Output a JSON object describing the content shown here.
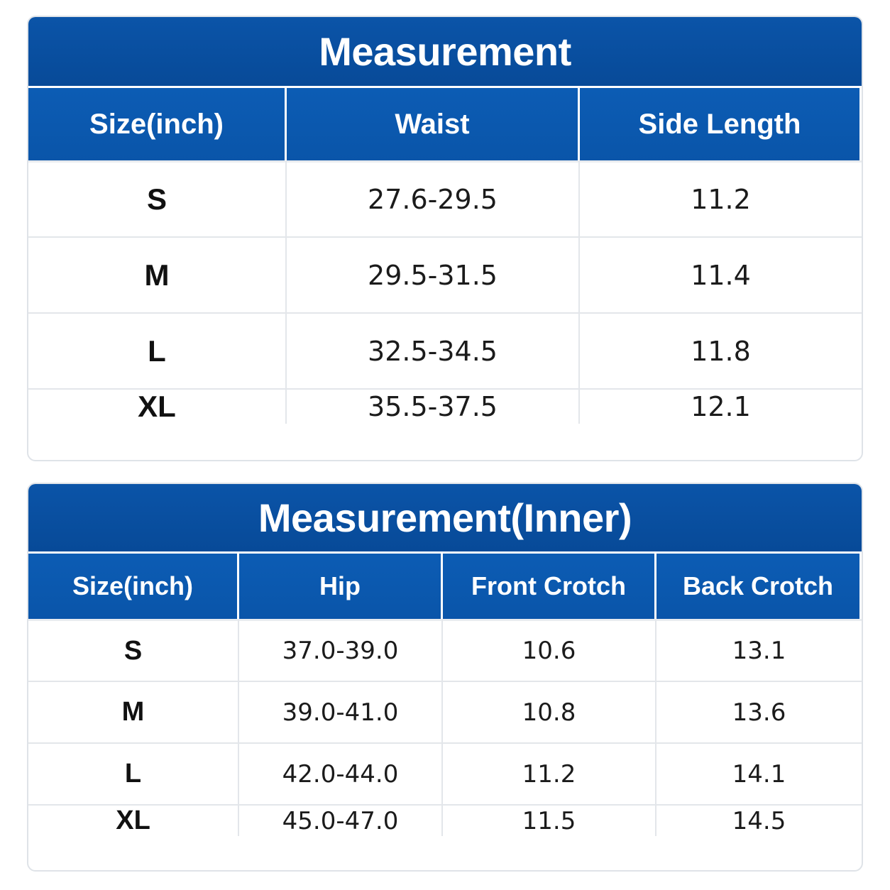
{
  "table1": {
    "title": "Measurement",
    "headers": [
      "Size(inch)",
      "Waist",
      "Side Length"
    ],
    "rows": [
      [
        "S",
        "27.6-29.5",
        "11.2"
      ],
      [
        "M",
        "29.5-31.5",
        "11.4"
      ],
      [
        "L",
        "32.5-34.5",
        "11.8"
      ],
      [
        "XL",
        "35.5-37.5",
        "12.1"
      ]
    ]
  },
  "table2": {
    "title": "Measurement(Inner)",
    "headers": [
      "Size(inch)",
      "Hip",
      "Front Crotch",
      "Back Crotch"
    ],
    "rows": [
      [
        "S",
        "37.0-39.0",
        "10.6",
        "13.1"
      ],
      [
        "M",
        "39.0-41.0",
        "10.8",
        "13.6"
      ],
      [
        "L",
        "42.0-44.0",
        "11.2",
        "14.1"
      ],
      [
        "XL",
        "45.0-47.0",
        "11.5",
        "14.5"
      ]
    ]
  },
  "colors": {
    "header_blue": "#0a55a9",
    "title_blue": "#074a98",
    "grid_line": "#e3e6ea"
  }
}
